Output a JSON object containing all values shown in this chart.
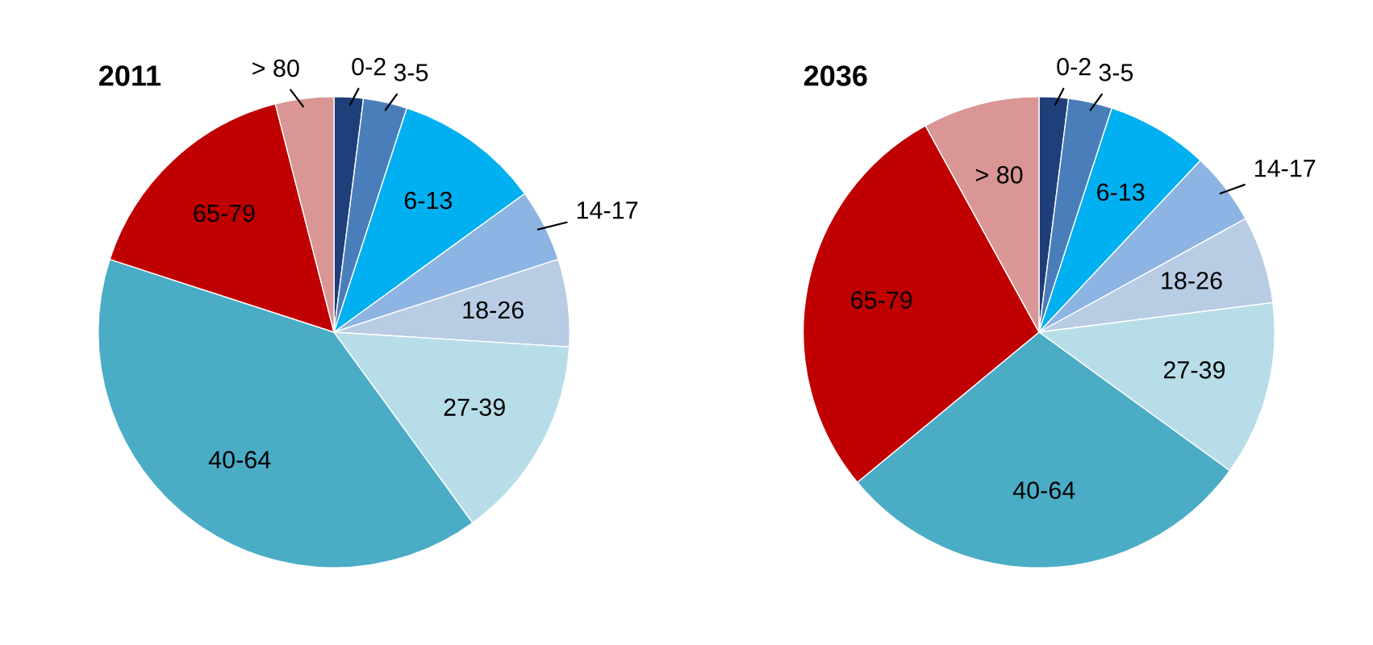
{
  "chart_data": [
    {
      "type": "pie",
      "title": "2011",
      "categories": [
        "0-2",
        "3-5",
        "6-13",
        "14-17",
        "18-26",
        "27-39",
        "40-64",
        "65-79",
        "> 80"
      ],
      "values": [
        2,
        3,
        10,
        5,
        6,
        14,
        40,
        16,
        4
      ],
      "colors": [
        "#1f3f7a",
        "#4a7ebb",
        "#00b0f0",
        "#8db4e2",
        "#b8cce4",
        "#b7dde8",
        "#4bacc6",
        "#c00000",
        "#d99694"
      ]
    },
    {
      "type": "pie",
      "title": "2036",
      "categories": [
        "0-2",
        "3-5",
        "6-13",
        "14-17",
        "18-26",
        "27-39",
        "40-64",
        "65-79",
        "> 80"
      ],
      "values": [
        2,
        3,
        7,
        5,
        6,
        12,
        29,
        28,
        8
      ],
      "colors": [
        "#1f3f7a",
        "#4a7ebb",
        "#00b0f0",
        "#8db4e2",
        "#b8cce4",
        "#b7dde8",
        "#4bacc6",
        "#c00000",
        "#d99694"
      ]
    }
  ]
}
